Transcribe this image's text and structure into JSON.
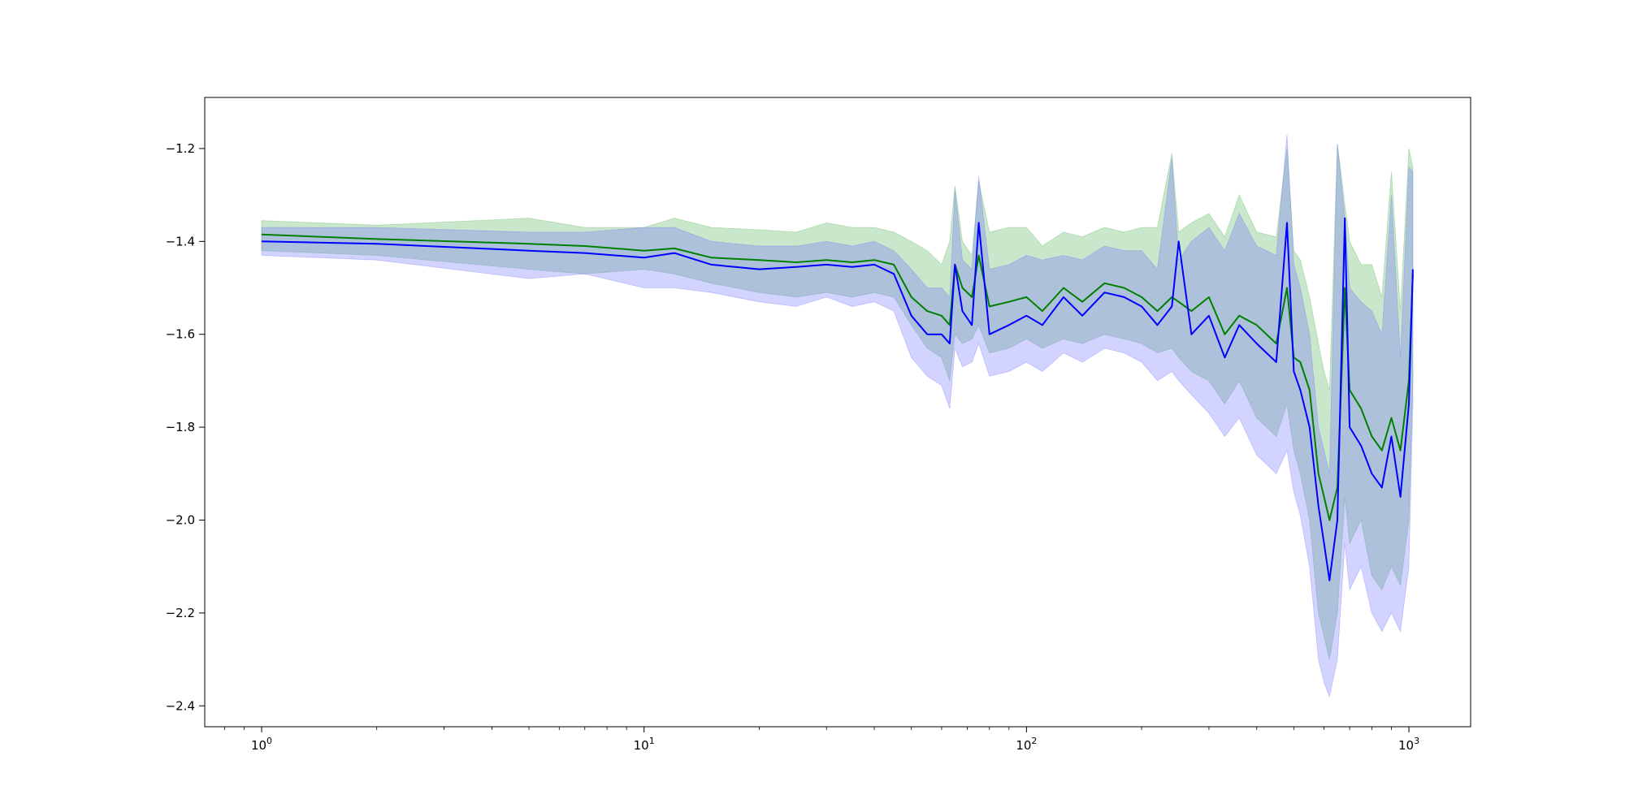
{
  "chart_data": {
    "type": "line",
    "title": "",
    "xlabel": "",
    "ylabel": "",
    "xscale": "log",
    "xlim": [
      0.71,
      1450
    ],
    "ylim": [
      -2.445,
      -1.09
    ],
    "grid": false,
    "legend": "none",
    "x_ticks": [
      {
        "base": "10",
        "exp": "0",
        "value": 1
      },
      {
        "base": "10",
        "exp": "1",
        "value": 10
      },
      {
        "base": "10",
        "exp": "2",
        "value": 100
      },
      {
        "base": "10",
        "exp": "3",
        "value": 1000
      }
    ],
    "y_ticks": [
      {
        "label": "−1.2",
        "value": -1.2
      },
      {
        "label": "−1.4",
        "value": -1.4
      },
      {
        "label": "−1.6",
        "value": -1.6
      },
      {
        "label": "−1.8",
        "value": -1.8
      },
      {
        "label": "−2.0",
        "value": -2.0
      },
      {
        "label": "−2.2",
        "value": -2.2
      },
      {
        "label": "−2.4",
        "value": -2.4
      }
    ],
    "series": [
      {
        "color": "#008000",
        "band_color": "#4caf50",
        "x": [
          1,
          2,
          5,
          7,
          10,
          12,
          15,
          20,
          25,
          30,
          35,
          40,
          45,
          50,
          55,
          60,
          63,
          65,
          68,
          72,
          75,
          80,
          90,
          100,
          110,
          125,
          140,
          160,
          180,
          200,
          220,
          240,
          250,
          270,
          300,
          330,
          360,
          400,
          450,
          480,
          500,
          520,
          550,
          580,
          600,
          620,
          650,
          680,
          700,
          750,
          800,
          850,
          900,
          950,
          1000,
          1024
        ],
        "y": [
          -1.385,
          -1.395,
          -1.405,
          -1.41,
          -1.42,
          -1.415,
          -1.435,
          -1.44,
          -1.445,
          -1.44,
          -1.445,
          -1.44,
          -1.45,
          -1.52,
          -1.55,
          -1.56,
          -1.58,
          -1.45,
          -1.5,
          -1.52,
          -1.43,
          -1.54,
          -1.53,
          -1.52,
          -1.55,
          -1.5,
          -1.53,
          -1.49,
          -1.5,
          -1.52,
          -1.55,
          -1.52,
          -1.53,
          -1.55,
          -1.52,
          -1.6,
          -1.56,
          -1.58,
          -1.62,
          -1.5,
          -1.65,
          -1.66,
          -1.72,
          -1.9,
          -1.95,
          -2.0,
          -1.93,
          -1.5,
          -1.72,
          -1.76,
          -1.82,
          -1.85,
          -1.78,
          -1.85,
          -1.7,
          -1.47
        ],
        "upper": [
          -1.355,
          -1.365,
          -1.35,
          -1.37,
          -1.37,
          -1.35,
          -1.37,
          -1.375,
          -1.38,
          -1.36,
          -1.37,
          -1.37,
          -1.38,
          -1.4,
          -1.42,
          -1.45,
          -1.4,
          -1.28,
          -1.4,
          -1.43,
          -1.27,
          -1.38,
          -1.37,
          -1.37,
          -1.41,
          -1.38,
          -1.39,
          -1.37,
          -1.38,
          -1.37,
          -1.37,
          -1.21,
          -1.38,
          -1.36,
          -1.34,
          -1.39,
          -1.3,
          -1.38,
          -1.39,
          -1.2,
          -1.42,
          -1.44,
          -1.52,
          -1.62,
          -1.68,
          -1.72,
          -1.19,
          -1.32,
          -1.4,
          -1.45,
          -1.45,
          -1.52,
          -1.25,
          -1.55,
          -1.2,
          -1.24
        ],
        "lower": [
          -1.42,
          -1.43,
          -1.46,
          -1.47,
          -1.46,
          -1.47,
          -1.49,
          -1.51,
          -1.52,
          -1.51,
          -1.52,
          -1.51,
          -1.52,
          -1.58,
          -1.63,
          -1.65,
          -1.7,
          -1.6,
          -1.62,
          -1.61,
          -1.58,
          -1.64,
          -1.63,
          -1.61,
          -1.63,
          -1.61,
          -1.62,
          -1.6,
          -1.61,
          -1.62,
          -1.64,
          -1.63,
          -1.65,
          -1.68,
          -1.7,
          -1.75,
          -1.7,
          -1.78,
          -1.82,
          -1.75,
          -1.85,
          -1.9,
          -2.0,
          -2.2,
          -2.25,
          -2.3,
          -2.2,
          -1.95,
          -2.05,
          -2.0,
          -2.12,
          -2.15,
          -2.1,
          -2.14,
          -2.0,
          -1.7
        ]
      },
      {
        "color": "#0000ff",
        "band_color": "#6c6cff",
        "x": [
          1,
          2,
          5,
          7,
          10,
          12,
          15,
          20,
          25,
          30,
          35,
          40,
          45,
          50,
          55,
          60,
          63,
          65,
          68,
          72,
          75,
          80,
          90,
          100,
          110,
          125,
          140,
          160,
          180,
          200,
          220,
          240,
          250,
          270,
          300,
          330,
          360,
          400,
          450,
          480,
          500,
          520,
          550,
          580,
          600,
          620,
          650,
          680,
          700,
          750,
          800,
          850,
          900,
          950,
          1000,
          1024
        ],
        "y": [
          -1.4,
          -1.405,
          -1.42,
          -1.425,
          -1.435,
          -1.425,
          -1.45,
          -1.46,
          -1.455,
          -1.45,
          -1.455,
          -1.45,
          -1.47,
          -1.56,
          -1.6,
          -1.6,
          -1.62,
          -1.45,
          -1.55,
          -1.58,
          -1.36,
          -1.6,
          -1.58,
          -1.56,
          -1.58,
          -1.52,
          -1.56,
          -1.51,
          -1.52,
          -1.54,
          -1.58,
          -1.54,
          -1.4,
          -1.6,
          -1.56,
          -1.65,
          -1.58,
          -1.62,
          -1.66,
          -1.36,
          -1.68,
          -1.72,
          -1.8,
          -1.97,
          -2.05,
          -2.13,
          -2.0,
          -1.35,
          -1.8,
          -1.84,
          -1.9,
          -1.93,
          -1.82,
          -1.95,
          -1.75,
          -1.46
        ],
        "upper": [
          -1.37,
          -1.37,
          -1.38,
          -1.38,
          -1.37,
          -1.37,
          -1.4,
          -1.41,
          -1.41,
          -1.4,
          -1.41,
          -1.4,
          -1.42,
          -1.46,
          -1.5,
          -1.5,
          -1.52,
          -1.29,
          -1.44,
          -1.46,
          -1.26,
          -1.46,
          -1.45,
          -1.43,
          -1.44,
          -1.43,
          -1.44,
          -1.41,
          -1.42,
          -1.42,
          -1.46,
          -1.22,
          -1.44,
          -1.4,
          -1.37,
          -1.42,
          -1.34,
          -1.41,
          -1.43,
          -1.17,
          -1.45,
          -1.5,
          -1.6,
          -1.8,
          -1.85,
          -1.9,
          -1.19,
          -1.35,
          -1.5,
          -1.53,
          -1.55,
          -1.6,
          -1.3,
          -1.65,
          -1.24,
          -1.25
        ],
        "lower": [
          -1.43,
          -1.44,
          -1.48,
          -1.47,
          -1.5,
          -1.5,
          -1.51,
          -1.53,
          -1.54,
          -1.52,
          -1.54,
          -1.53,
          -1.55,
          -1.65,
          -1.69,
          -1.71,
          -1.76,
          -1.63,
          -1.67,
          -1.66,
          -1.62,
          -1.69,
          -1.68,
          -1.66,
          -1.68,
          -1.64,
          -1.66,
          -1.63,
          -1.64,
          -1.66,
          -1.7,
          -1.68,
          -1.7,
          -1.73,
          -1.77,
          -1.82,
          -1.78,
          -1.86,
          -1.9,
          -1.85,
          -1.94,
          -1.99,
          -2.1,
          -2.3,
          -2.35,
          -2.38,
          -2.3,
          -2.05,
          -2.15,
          -2.1,
          -2.2,
          -2.24,
          -2.2,
          -2.24,
          -2.1,
          -1.75
        ]
      }
    ]
  }
}
